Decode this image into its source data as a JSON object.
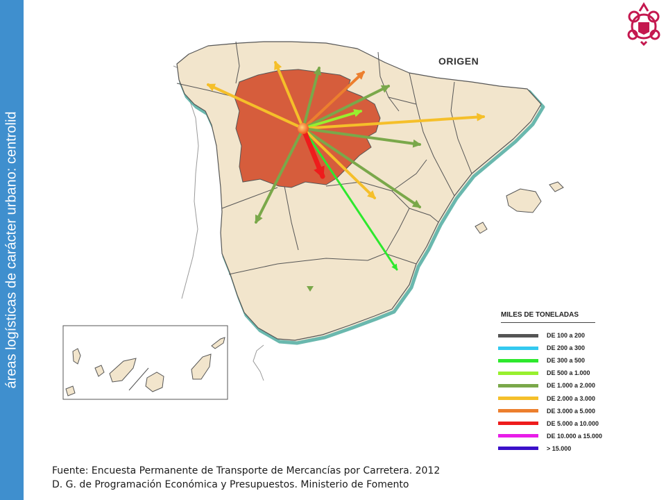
{
  "sidebar": {
    "title": "áreas logísticas de carácter urbano: centrolid"
  },
  "map": {
    "origin_label": "ORIGEN",
    "colors": {
      "land": "#f2e5cc",
      "highlight": "#d65d3c",
      "border": "#555555",
      "coast_shadow": "#46a79a"
    },
    "flow_arrows": [
      {
        "destination": "galicia",
        "class": "DE 2.000 a 3.000"
      },
      {
        "destination": "cantabria",
        "class": "DE 2.000 a 3.000"
      },
      {
        "destination": "pais-vasco",
        "class": "DE 3.000 a 5.000"
      },
      {
        "destination": "navarra",
        "class": "DE 1.000 a 2.000"
      },
      {
        "destination": "cataluna",
        "class": "DE 2.000 a 3.000"
      },
      {
        "destination": "aragon",
        "class": "DE 1.000 a 2.000"
      },
      {
        "destination": "madrid",
        "class": "DE 5.000 a 10.000"
      },
      {
        "destination": "castilla-la-mancha",
        "class": "DE 2.000 a 3.000"
      },
      {
        "destination": "valencia",
        "class": "DE 1.000 a 2.000"
      },
      {
        "destination": "murcia",
        "class": "DE 300 a 500"
      },
      {
        "destination": "extremadura",
        "class": "DE 1.000 a 2.000"
      },
      {
        "destination": "asturias",
        "class": "DE 1.000 a 2.000"
      },
      {
        "destination": "la-rioja",
        "class": "DE 500 a 1.000"
      }
    ]
  },
  "legend": {
    "title": "MILES DE TONELADAS",
    "items": [
      {
        "label": "DE 100 a 200",
        "color": "#555555"
      },
      {
        "label": "DE 200 a 300",
        "color": "#33c9f0"
      },
      {
        "label": "DE 300 a 500",
        "color": "#2ee82e"
      },
      {
        "label": "DE 500 a 1.000",
        "color": "#98f02e"
      },
      {
        "label": "DE 1.000 a 2.000",
        "color": "#7aa84a"
      },
      {
        "label": "DE 2.000 a 3.000",
        "color": "#f5bf2a"
      },
      {
        "label": "DE 3.000 a 5.000",
        "color": "#ec7f2e"
      },
      {
        "label": "DE 5.000 a 10.000",
        "color": "#ee1c1c"
      },
      {
        "label": "DE 10.000 a 15.000",
        "color": "#e81ee8"
      },
      {
        "label": "> 15.000",
        "color": "#3a10c9"
      }
    ]
  },
  "source": {
    "line1": "Fuente: Encuesta Permanente de Transporte de Mercancías por Carretera. 2012",
    "line2": "D. G. de Programación Económica y Presupuestos. Ministerio de Fomento"
  }
}
